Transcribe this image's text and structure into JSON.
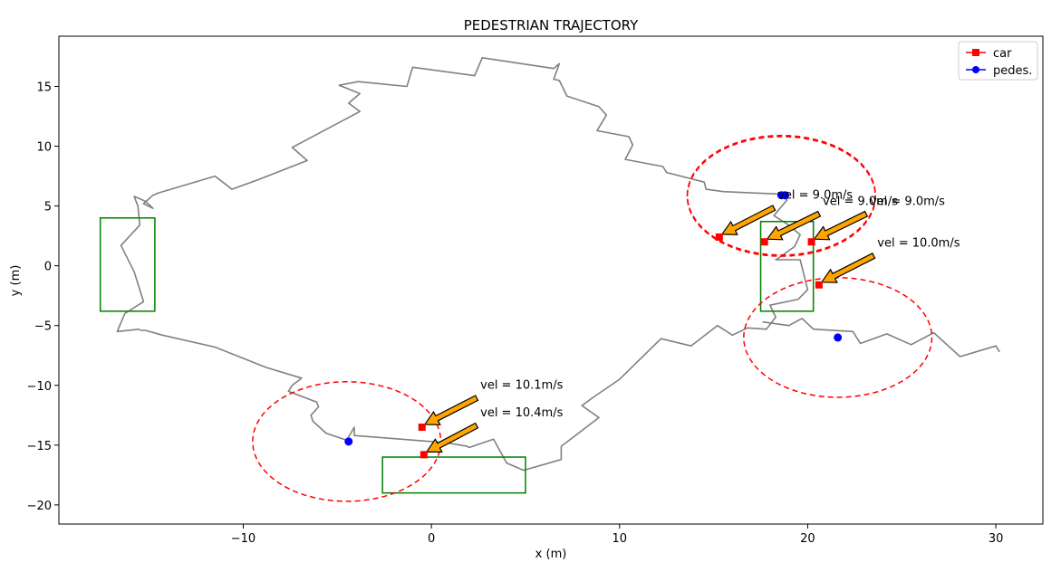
{
  "chart_data": {
    "type": "scatter",
    "title": "PEDESTRIAN TRAJECTORY",
    "xlabel": "x (m)",
    "ylabel": "y (m)",
    "xlim": [
      -19.8,
      32.5
    ],
    "ylim": [
      -21.6,
      19.2
    ],
    "xticks": [
      -10,
      0,
      10,
      20,
      30
    ],
    "yticks": [
      -20,
      -15,
      -10,
      -5,
      0,
      5,
      10,
      15
    ],
    "xtick_labels": [
      "−10",
      "0",
      "10",
      "20",
      "30"
    ],
    "ytick_labels": [
      "−20",
      "−15",
      "−10",
      "−5",
      "0",
      "5",
      "10",
      "15"
    ],
    "grid": false,
    "legend_position": "top-right",
    "legend": [
      {
        "label": "car",
        "color": "#ff0000",
        "marker": "square"
      },
      {
        "label": "pedes.",
        "color": "#0000ff",
        "marker": "circle"
      }
    ],
    "trajectory": {
      "color": "#808080",
      "points": [
        [
          -15.5,
          -5.3
        ],
        [
          -16.7,
          -5.5
        ],
        [
          -16.3,
          -4.0
        ],
        [
          -15.3,
          -3.0
        ],
        [
          -15.8,
          -0.5
        ],
        [
          -16.5,
          1.7
        ],
        [
          -15.5,
          3.4
        ],
        [
          -15.6,
          5.0
        ],
        [
          -15.8,
          5.8
        ],
        [
          -15.2,
          5.4
        ],
        [
          -14.8,
          4.8
        ],
        [
          -15.3,
          5.2
        ],
        [
          -14.8,
          5.9
        ],
        [
          -14.5,
          6.1
        ],
        [
          -11.5,
          7.5
        ],
        [
          -10.6,
          6.4
        ],
        [
          -9.2,
          7.2
        ],
        [
          -6.6,
          8.8
        ],
        [
          -7.4,
          9.9
        ],
        [
          -3.8,
          12.9
        ],
        [
          -4.4,
          13.6
        ],
        [
          -3.8,
          14.4
        ],
        [
          -4.9,
          15.1
        ],
        [
          -3.9,
          15.4
        ],
        [
          -1.3,
          15.0
        ],
        [
          -1.0,
          16.6
        ],
        [
          2.3,
          15.9
        ],
        [
          2.7,
          17.4
        ],
        [
          6.5,
          16.5
        ],
        [
          6.8,
          16.9
        ],
        [
          6.5,
          15.6
        ],
        [
          6.8,
          15.5
        ],
        [
          7.2,
          14.2
        ],
        [
          8.9,
          13.3
        ],
        [
          9.3,
          12.6
        ],
        [
          8.8,
          11.3
        ],
        [
          10.5,
          10.8
        ],
        [
          10.7,
          10.1
        ],
        [
          10.3,
          8.9
        ],
        [
          12.3,
          8.3
        ],
        [
          12.5,
          7.8
        ],
        [
          14.5,
          7.0
        ],
        [
          14.6,
          6.4
        ],
        [
          15.5,
          6.2
        ],
        [
          18.5,
          6.0
        ],
        [
          18.9,
          5.5
        ],
        [
          18.2,
          4.2
        ],
        [
          18.9,
          3.5
        ],
        [
          19.6,
          2.6
        ],
        [
          19.3,
          1.6
        ],
        [
          18.5,
          0.7
        ],
        [
          18.3,
          0.5
        ],
        [
          19.6,
          0.5
        ],
        [
          20.0,
          -2.0
        ],
        [
          19.5,
          -2.8
        ],
        [
          18.0,
          -3.3
        ],
        [
          18.3,
          -4.3
        ],
        [
          17.8,
          -5.3
        ],
        [
          16.8,
          -5.2
        ],
        [
          16.0,
          -5.8
        ],
        [
          15.2,
          -5.0
        ],
        [
          13.8,
          -6.7
        ],
        [
          12.2,
          -6.1
        ],
        [
          10.0,
          -9.5
        ],
        [
          8.6,
          -11.0
        ],
        [
          8.0,
          -11.7
        ],
        [
          8.9,
          -12.7
        ],
        [
          6.9,
          -15.1
        ],
        [
          6.9,
          -16.2
        ],
        [
          4.9,
          -17.1
        ],
        [
          4.0,
          -16.5
        ],
        [
          3.3,
          -14.5
        ],
        [
          2.0,
          -15.2
        ],
        [
          1.9,
          -15.1
        ],
        [
          0.8,
          -14.8
        ],
        [
          -4.1,
          -14.2
        ],
        [
          -4.1,
          -13.5
        ],
        [
          -4.5,
          -14.6
        ],
        [
          -5.6,
          -14.0
        ],
        [
          -6.3,
          -13.0
        ],
        [
          -6.4,
          -12.5
        ],
        [
          -6.0,
          -11.8
        ],
        [
          -6.1,
          -11.4
        ],
        [
          -7.6,
          -10.5
        ],
        [
          -7.4,
          -10.0
        ],
        [
          -6.9,
          -9.4
        ],
        [
          -8.8,
          -8.5
        ],
        [
          -11.5,
          -6.8
        ],
        [
          -14.3,
          -5.8
        ],
        [
          -15.2,
          -5.4
        ],
        [
          -15.5,
          -5.4
        ]
      ]
    },
    "tail_path": {
      "color": "#808080",
      "points": [
        [
          17.6,
          -4.7
        ],
        [
          19.0,
          -5.0
        ],
        [
          19.7,
          -4.4
        ],
        [
          20.3,
          -5.3
        ],
        [
          22.4,
          -5.5
        ],
        [
          22.8,
          -6.5
        ],
        [
          24.2,
          -5.7
        ],
        [
          25.5,
          -6.6
        ],
        [
          26.7,
          -5.6
        ],
        [
          28.1,
          -7.6
        ],
        [
          30.0,
          -6.7
        ],
        [
          30.2,
          -7.2
        ]
      ]
    },
    "rectangles": [
      {
        "x0": -17.6,
        "y0": -3.8,
        "x1": -14.7,
        "y1": 4.0,
        "color": "#008000"
      },
      {
        "x0": 17.5,
        "y0": -3.8,
        "x1": 20.3,
        "y1": 3.7,
        "color": "#008000"
      },
      {
        "x0": -2.6,
        "y0": -19.0,
        "x1": 5.0,
        "y1": -16.0,
        "color": "#008000"
      }
    ],
    "circles": [
      {
        "cx": 18.6,
        "cy": 5.9,
        "r": 5.0,
        "color": "#ff0000"
      },
      {
        "cx": 18.6,
        "cy": 5.8,
        "r": 5.0,
        "color": "#ff0000"
      },
      {
        "cx": 21.6,
        "cy": -6.0,
        "r": 5.0,
        "color": "#ff0000"
      },
      {
        "cx": -4.5,
        "cy": -14.7,
        "r": 5.0,
        "color": "#ff0000"
      }
    ],
    "car_points": [
      {
        "x": 15.3,
        "y": 2.4
      },
      {
        "x": 17.7,
        "y": 2.0
      },
      {
        "x": 20.2,
        "y": 2.0
      },
      {
        "x": 20.6,
        "y": -1.6
      },
      {
        "x": -0.5,
        "y": -13.5
      },
      {
        "x": -0.4,
        "y": -15.8
      }
    ],
    "pedestrian_points": [
      {
        "x": 18.6,
        "y": 5.9
      },
      {
        "x": 18.8,
        "y": 5.9
      },
      {
        "x": 21.6,
        "y": -6.0
      },
      {
        "x": -4.4,
        "y": -14.7
      }
    ],
    "annotations": [
      {
        "text": "vel = 9.0m/s",
        "tx": 18.4,
        "ty": 5.6,
        "ax": 15.3,
        "ay": 2.4
      },
      {
        "text": "vel = 9.0m/s",
        "tx": 20.8,
        "ty": 5.1,
        "ax": 17.7,
        "ay": 2.0
      },
      {
        "text": "vel = 9.0m/s",
        "tx": 23.3,
        "ty": 5.1,
        "ax": 20.2,
        "ay": 2.0
      },
      {
        "text": "vel = 10.0m/s",
        "tx": 23.7,
        "ty": 1.6,
        "ax": 20.6,
        "ay": -1.6
      },
      {
        "text": "vel = 10.1m/s",
        "tx": 2.6,
        "ty": -10.3,
        "ax": -0.5,
        "ay": -13.5
      },
      {
        "text": "vel = 10.4m/s",
        "tx": 2.6,
        "ty": -12.6,
        "ax": -0.4,
        "ay": -15.8
      }
    ]
  }
}
